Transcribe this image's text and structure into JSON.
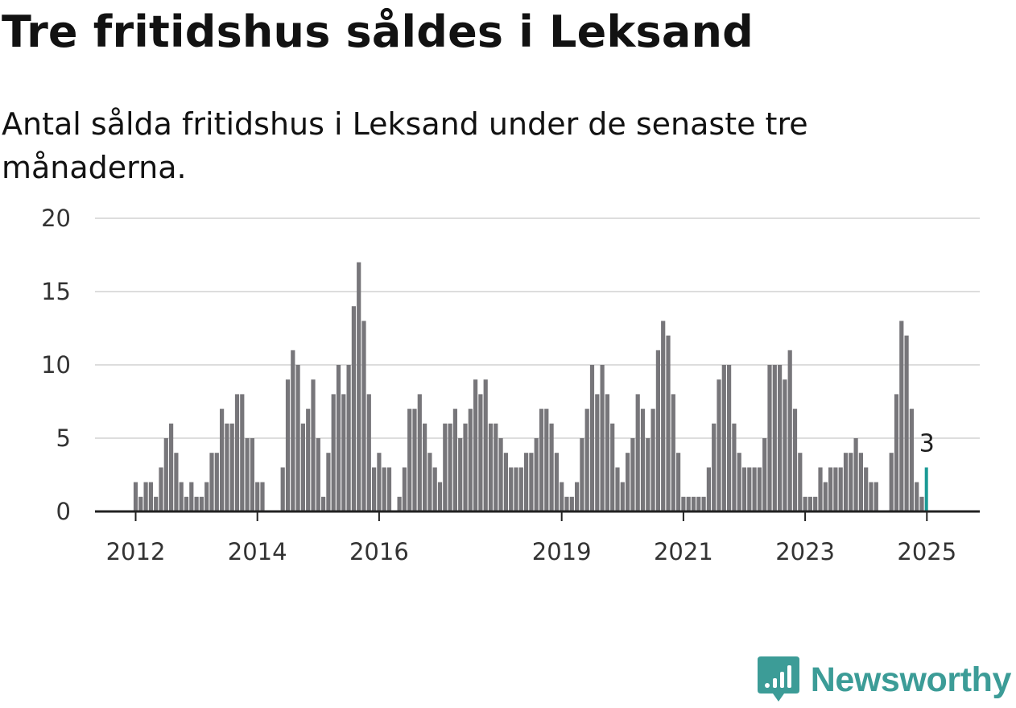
{
  "header": {
    "title": "Tre fritidshus såldes i Leksand",
    "subtitle": "Antal sålda fritidshus i Leksand under de senaste tre månaderna."
  },
  "brand": {
    "name": "Newsworthy",
    "icon": "newsworthy-logo-icon",
    "color": "#3c9c97"
  },
  "colors": {
    "bar": "#77767a",
    "highlight": "#1a9a95",
    "grid": "#dddddd",
    "axis": "#222222"
  },
  "chart_data": {
    "type": "bar",
    "title": "Tre fritidshus såldes i Leksand",
    "subtitle": "Antal sålda fritidshus i Leksand under de senaste tre månaderna.",
    "xlabel": "",
    "ylabel": "",
    "ylim": [
      0,
      20
    ],
    "yticks": [
      0,
      5,
      10,
      15,
      20
    ],
    "grid": true,
    "legend": "none",
    "x_start": "2012-01",
    "x_ticks": [
      {
        "label": "2012",
        "index": 0
      },
      {
        "label": "2014",
        "index": 24
      },
      {
        "label": "2016",
        "index": 48
      },
      {
        "label": "2019",
        "index": 84
      },
      {
        "label": "2021",
        "index": 108
      },
      {
        "label": "2023",
        "index": 132
      },
      {
        "label": "2025",
        "index": 156
      }
    ],
    "values": [
      2,
      1,
      2,
      2,
      1,
      3,
      5,
      6,
      4,
      2,
      1,
      2,
      1,
      1,
      2,
      4,
      4,
      7,
      6,
      6,
      8,
      8,
      5,
      5,
      2,
      2,
      0,
      0,
      0,
      3,
      9,
      11,
      10,
      6,
      7,
      9,
      5,
      1,
      4,
      8,
      10,
      8,
      10,
      14,
      17,
      13,
      8,
      3,
      4,
      3,
      3,
      0,
      1,
      3,
      7,
      7,
      8,
      6,
      4,
      3,
      2,
      6,
      6,
      7,
      5,
      6,
      7,
      9,
      8,
      9,
      6,
      6,
      5,
      4,
      3,
      3,
      3,
      4,
      4,
      5,
      7,
      7,
      6,
      4,
      2,
      1,
      1,
      2,
      5,
      7,
      10,
      8,
      10,
      8,
      6,
      3,
      2,
      4,
      5,
      8,
      7,
      5,
      7,
      11,
      13,
      12,
      8,
      4,
      1,
      1,
      1,
      1,
      1,
      3,
      6,
      9,
      10,
      10,
      6,
      4,
      3,
      3,
      3,
      3,
      5,
      10,
      10,
      10,
      9,
      11,
      7,
      4,
      1,
      1,
      1,
      3,
      2,
      3,
      3,
      3,
      4,
      4,
      5,
      4,
      3,
      2,
      2,
      0,
      0,
      4,
      8,
      13,
      12,
      7,
      2,
      1,
      3
    ],
    "highlight_index": 156,
    "highlight_label": "3"
  }
}
